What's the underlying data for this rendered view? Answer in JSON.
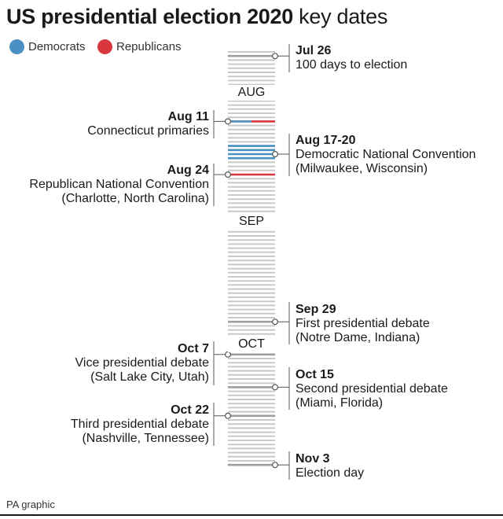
{
  "title": {
    "bold": "US presidential election 2020",
    "rest": " key dates"
  },
  "legend": [
    {
      "label": "Democrats",
      "color": "#4a90c2"
    },
    {
      "label": "Republicans",
      "color": "#d9363e"
    }
  ],
  "colors": {
    "tick": "#c8c8c8",
    "tick_marked": "#9e9e9e",
    "connector": "#555555",
    "democrats": "#4a90c2",
    "republicans": "#d9363e"
  },
  "months": [
    "AUG",
    "SEP",
    "OCT"
  ],
  "events": [
    {
      "date": "Jul 26",
      "desc": [
        "100 days to election"
      ]
    },
    {
      "date": "Aug 11",
      "desc": [
        "Connecticut primaries"
      ]
    },
    {
      "date": "Aug 17-20",
      "desc": [
        "Democratic National Convention",
        "(Milwaukee, Wisconsin)"
      ]
    },
    {
      "date": "Aug 24",
      "desc": [
        "Republican National Convention",
        "(Charlotte, North Carolina)"
      ]
    },
    {
      "date": "Sep 29",
      "desc": [
        "First presidential debate",
        "(Notre Dame, Indiana)"
      ]
    },
    {
      "date": "Oct 7",
      "desc": [
        "Vice presidential debate",
        "(Salt Lake City, Utah)"
      ]
    },
    {
      "date": "Oct 15",
      "desc": [
        "Second presidential debate",
        "(Miami, Florida)"
      ]
    },
    {
      "date": "Oct 22",
      "desc": [
        "Third presidential debate",
        "(Nashville, Tennessee)"
      ]
    },
    {
      "date": "Nov 3",
      "desc": [
        "Election day"
      ]
    }
  ],
  "source": "PA graphic"
}
